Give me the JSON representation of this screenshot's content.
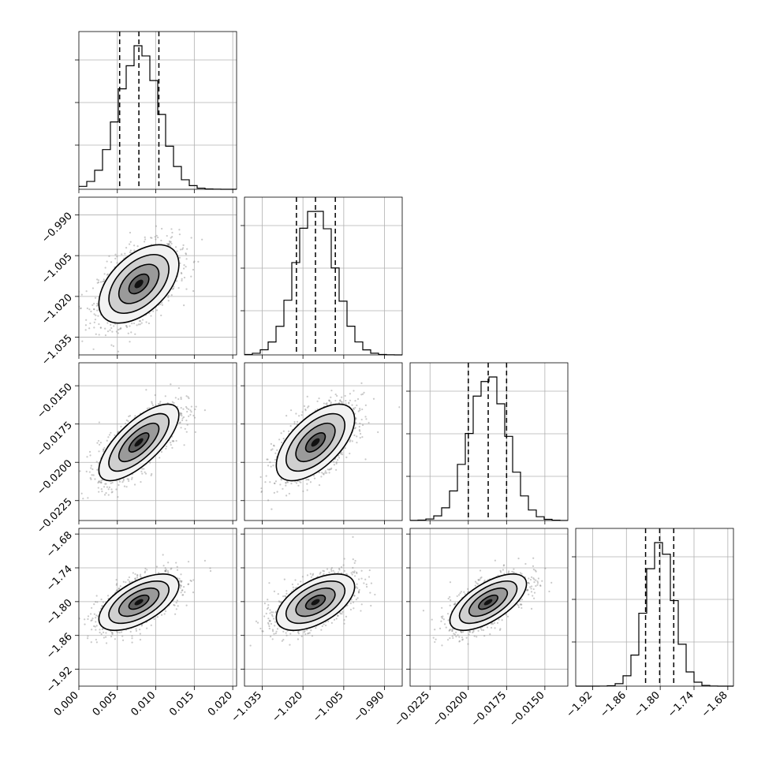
{
  "chart_data": {
    "type": "corner",
    "description_free": true,
    "parameters": [
      {
        "index": 0,
        "range": [
          0.0,
          0.0205
        ],
        "ticks": [
          "0.000",
          "0.005",
          "0.010",
          "0.015",
          "0.020"
        ],
        "tick_values": [
          0.0,
          0.005,
          0.01,
          0.015,
          0.02
        ],
        "quantiles": {
          "q16": 0.0053,
          "q50": 0.0078,
          "q84": 0.0104
        },
        "mean": 0.0078,
        "sd": 0.0026
      },
      {
        "index": 1,
        "range": [
          -1.0415,
          -0.9835
        ],
        "ticks": [
          "−1.035",
          "−1.020",
          "−1.005",
          "−0.990"
        ],
        "tick_values": [
          -1.035,
          -1.02,
          -1.005,
          -0.99
        ],
        "quantiles": {
          "q16": -1.0224,
          "q50": -1.0154,
          "q84": -1.0081
        },
        "mean": -1.0154,
        "sd": 0.0072
      },
      {
        "index": 2,
        "range": [
          -0.0238,
          -0.0135
        ],
        "ticks": [
          "−0.0225",
          "−0.0200",
          "−0.0175",
          "−0.0150"
        ],
        "tick_values": [
          -0.0225,
          -0.02,
          -0.0175,
          -0.015
        ],
        "quantiles": {
          "q16": -0.02,
          "q50": -0.0187,
          "q84": -0.0175
        },
        "mean": -0.0187,
        "sd": 0.00125
      },
      {
        "index": 3,
        "range": [
          -1.95,
          -1.67
        ],
        "ticks": [
          "−1.92",
          "−1.86",
          "−1.80",
          "−1.74",
          "−1.68"
        ],
        "tick_values": [
          -1.92,
          -1.86,
          -1.8,
          -1.74,
          -1.68
        ],
        "quantiles": {
          "q16": -1.826,
          "q50": -1.801,
          "q84": -1.776
        },
        "mean": -1.801,
        "sd": 0.025
      }
    ],
    "correlations": {
      "1-0": 0.5,
      "2-0": 0.72,
      "2-1": 0.6,
      "3-0": 0.6,
      "3-1": 0.55,
      "3-2": 0.65
    },
    "contour_levels_sigma": [
      0.5,
      1.0,
      1.5,
      2.0
    ],
    "grid": true,
    "histogram_bins": 20
  }
}
